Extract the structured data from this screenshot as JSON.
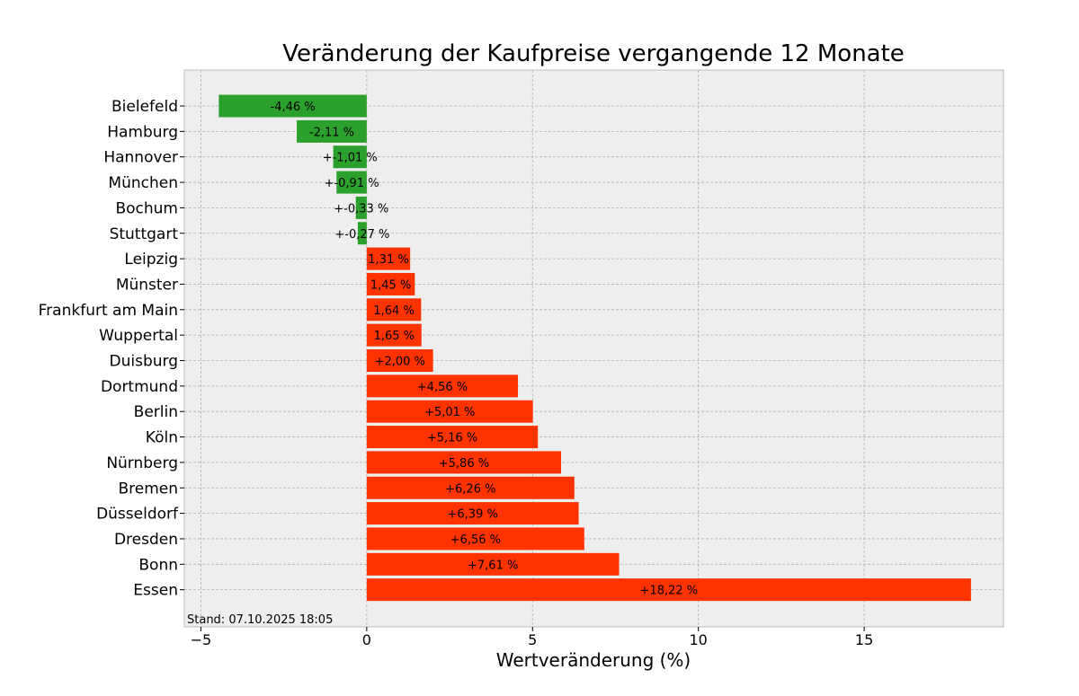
{
  "chart_data": {
    "type": "bar",
    "orientation": "horizontal",
    "title": "Veränderung der Kaufpreise vergangende 12 Monate",
    "xlabel": "Wertveränderung (%)",
    "ylabel": "",
    "xlim": [
      -5.5,
      19.2
    ],
    "xticks": [
      -5,
      0,
      5,
      10,
      15
    ],
    "grid": true,
    "note": "Stand: 07.10.2025 18:05",
    "colors": {
      "negative": "#2ca02c",
      "positive": "#ff3300",
      "background": "#eeeeee"
    },
    "categories": [
      "Bielefeld",
      "Hamburg",
      "Hannover",
      "München",
      "Bochum",
      "Stuttgart",
      "Leipzig",
      "Münster",
      "Frankfurt am Main",
      "Wuppertal",
      "Duisburg",
      "Dortmund",
      "Berlin",
      "Köln",
      "Nürnberg",
      "Bremen",
      "Düsseldorf",
      "Dresden",
      "Bonn",
      "Essen"
    ],
    "values": [
      -4.46,
      -2.11,
      -1.01,
      -0.91,
      -0.33,
      -0.27,
      1.31,
      1.45,
      1.64,
      1.65,
      2.0,
      4.56,
      5.01,
      5.16,
      5.86,
      6.26,
      6.39,
      6.56,
      7.61,
      18.22
    ],
    "labels": [
      "-4,46 %",
      "-2,11 %",
      "+-1,01 %",
      "+-0,91 %",
      "+-0,33 %",
      "+-0,27 %",
      "1,31 %",
      "1,45 %",
      "1,64 %",
      "1,65 %",
      "+2,00 %",
      "+4,56 %",
      "+5,01 %",
      "+5,16 %",
      "+5,86 %",
      "+6,26 %",
      "+6,39 %",
      "+6,56 %",
      "+7,61 %",
      "+18,22 %"
    ]
  }
}
